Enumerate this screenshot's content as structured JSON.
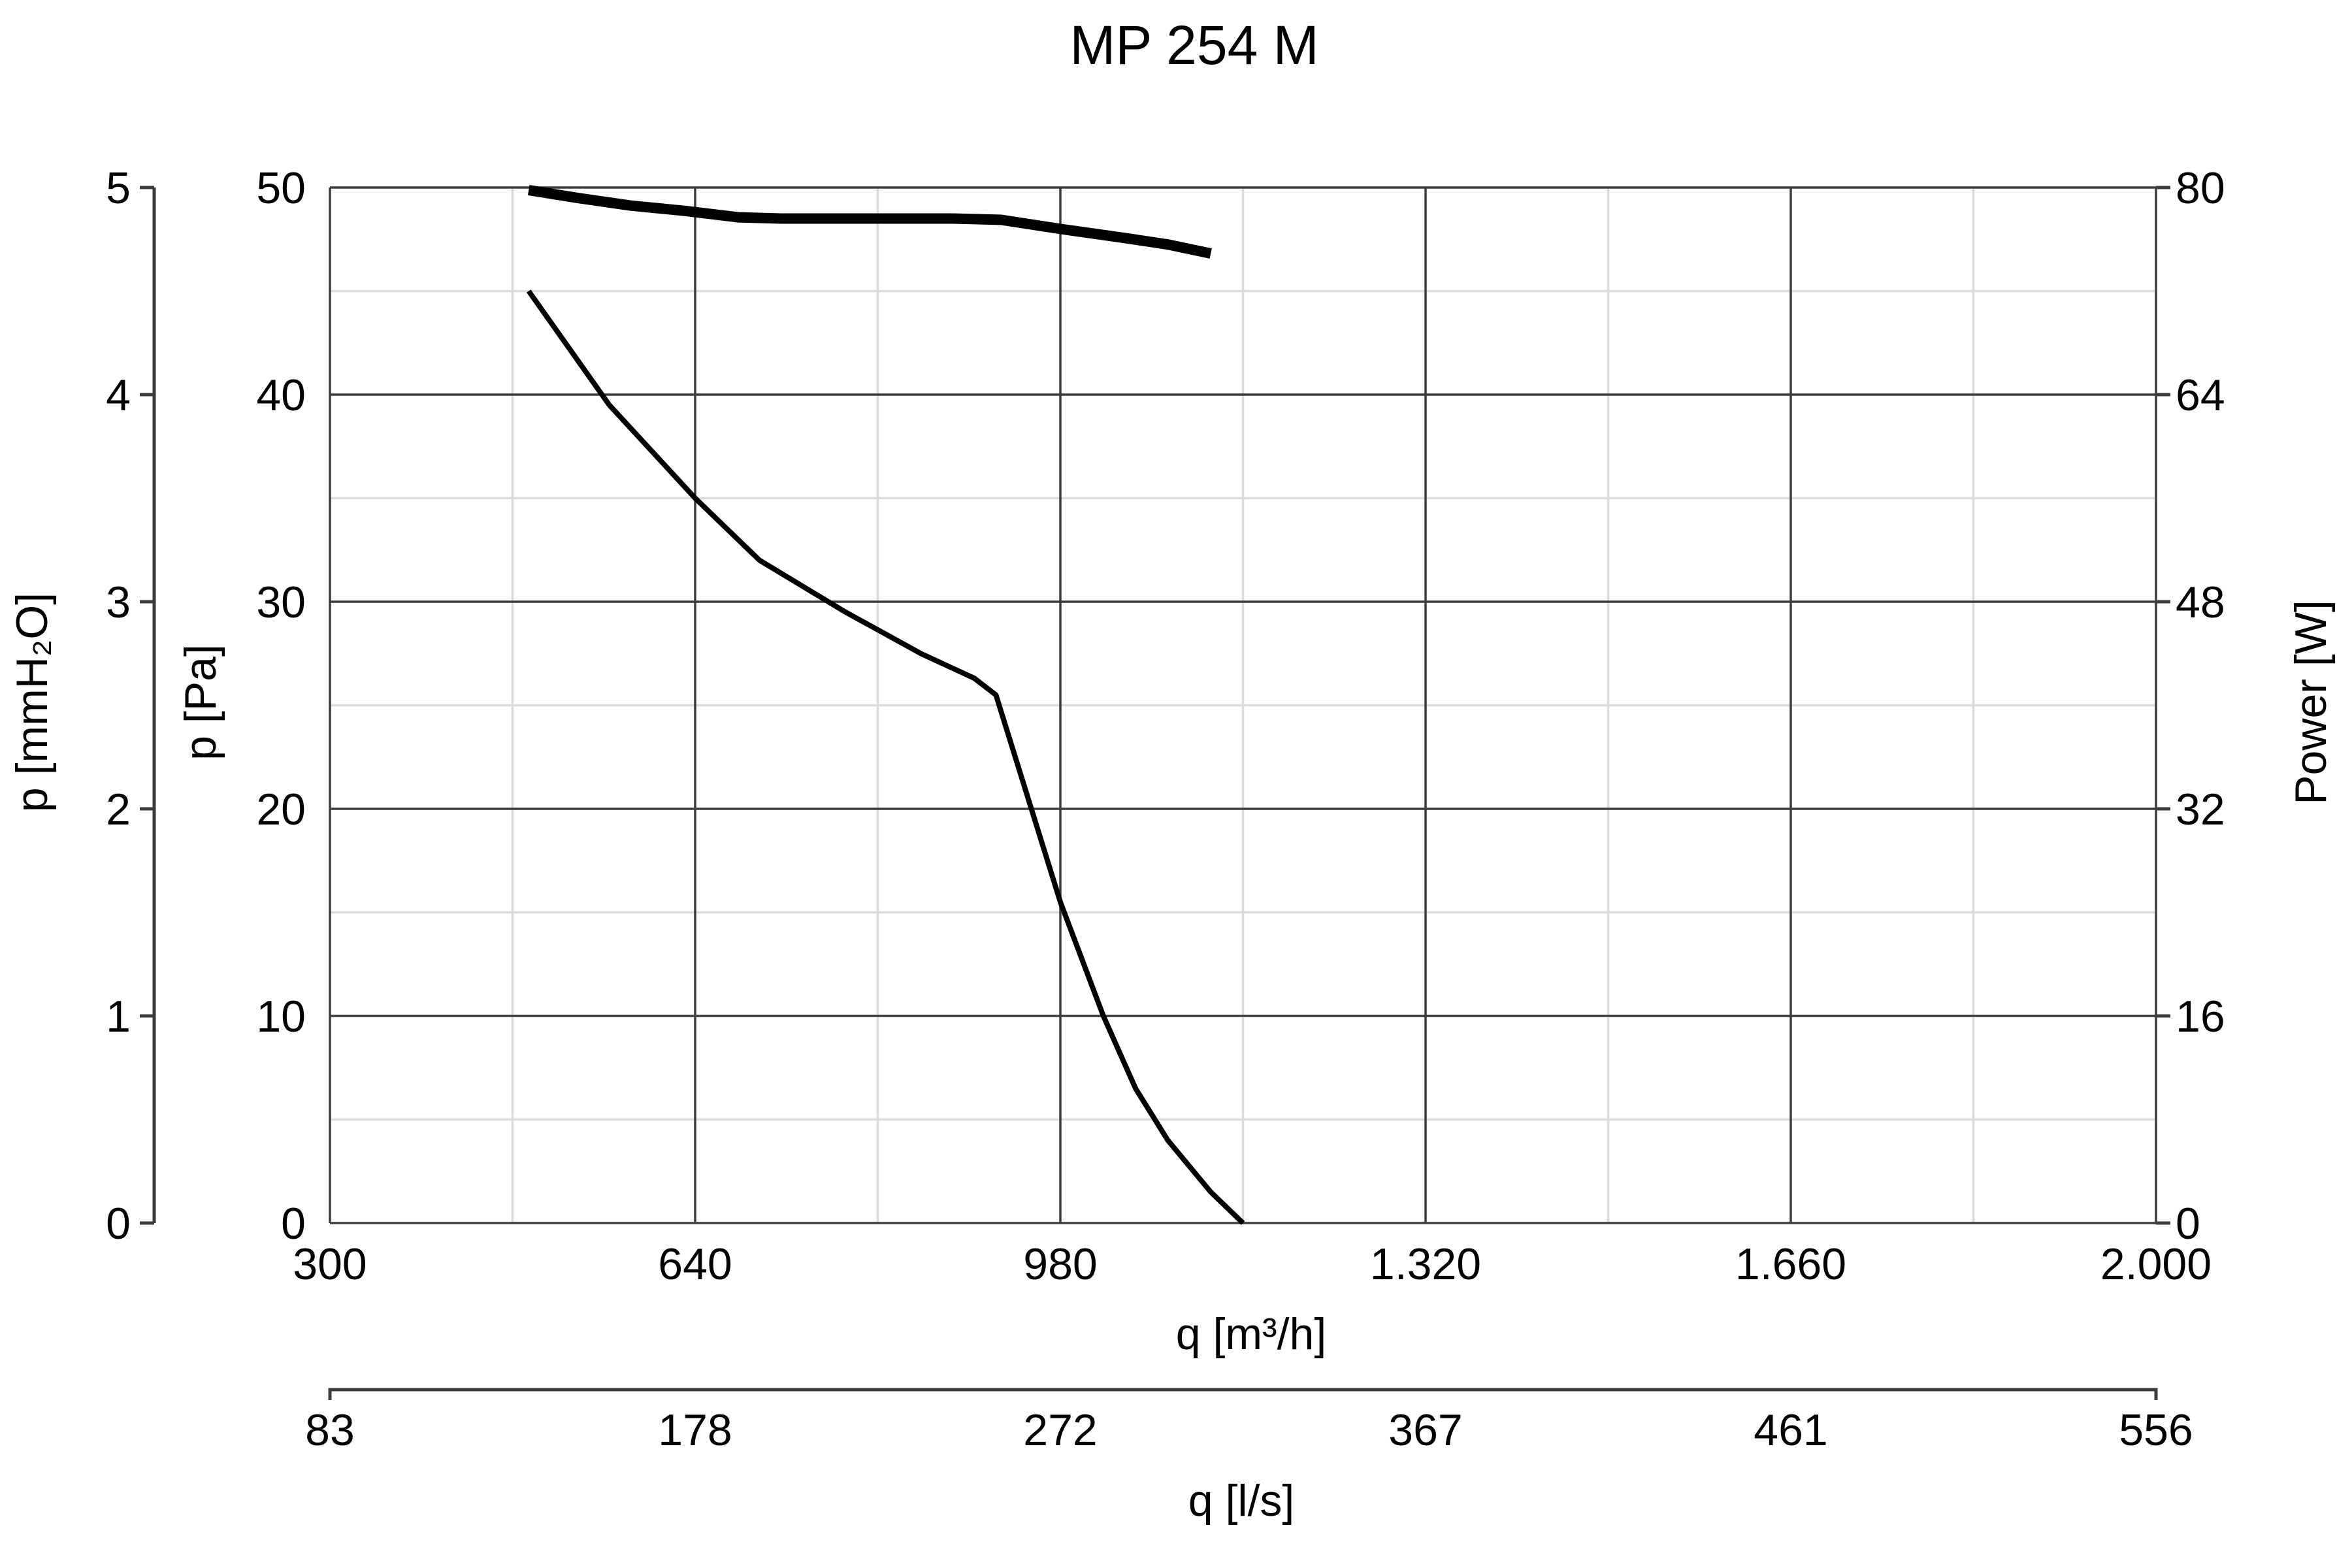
{
  "chart_data": {
    "type": "line",
    "title": "MP 254 M",
    "x_axis": {
      "label": "q [m³/h]",
      "range": [
        300,
        2000
      ],
      "tick_values": [
        300,
        640,
        980,
        1320,
        1660,
        2000
      ],
      "tick_labels": [
        "300",
        "640",
        "980",
        "1.320",
        "1.660",
        "2.000"
      ]
    },
    "x2_axis": {
      "label": "q [l/s]",
      "range": [
        83,
        556
      ],
      "tick_labels": [
        "83",
        "178",
        "272",
        "367",
        "461",
        "556"
      ]
    },
    "y_axis": {
      "label": "p [Pa]",
      "range": [
        0,
        50
      ],
      "tick_labels": [
        "0",
        "10",
        "20",
        "30",
        "40",
        "50"
      ]
    },
    "y_left_outer_axis": {
      "label": "p [mmH₂O]",
      "range": [
        0,
        5
      ],
      "tick_labels": [
        "0",
        "1",
        "2",
        "3",
        "4",
        "5"
      ]
    },
    "y_right_axis": {
      "label": "Power [W]",
      "range": [
        0,
        80
      ],
      "tick_labels": [
        "0",
        "16",
        "32",
        "48",
        "64",
        "80"
      ]
    },
    "grid": true,
    "series": [
      {
        "axis": "y_right",
        "color": "#000000",
        "points": [
          [
            485,
            79.8
          ],
          [
            530,
            79.2
          ],
          [
            580,
            78.6
          ],
          [
            630,
            78.2
          ],
          [
            680,
            77.7
          ],
          [
            720,
            77.6
          ],
          [
            790,
            77.6
          ],
          [
            880,
            77.6
          ],
          [
            925,
            77.5
          ],
          [
            980,
            76.8
          ],
          [
            1040,
            76.1
          ],
          [
            1080,
            75.6
          ],
          [
            1120,
            74.9
          ]
        ]
      },
      {
        "axis": "y",
        "color": "#000000",
        "points": [
          [
            485,
            45
          ],
          [
            560,
            39.5
          ],
          [
            640,
            35
          ],
          [
            700,
            32
          ],
          [
            780,
            29.5
          ],
          [
            850,
            27.5
          ],
          [
            900,
            26.3
          ],
          [
            920,
            25.5
          ],
          [
            980,
            15.5
          ],
          [
            1020,
            10
          ],
          [
            1050,
            6.5
          ],
          [
            1080,
            4
          ],
          [
            1120,
            1.5
          ],
          [
            1150,
            0
          ]
        ]
      }
    ]
  }
}
